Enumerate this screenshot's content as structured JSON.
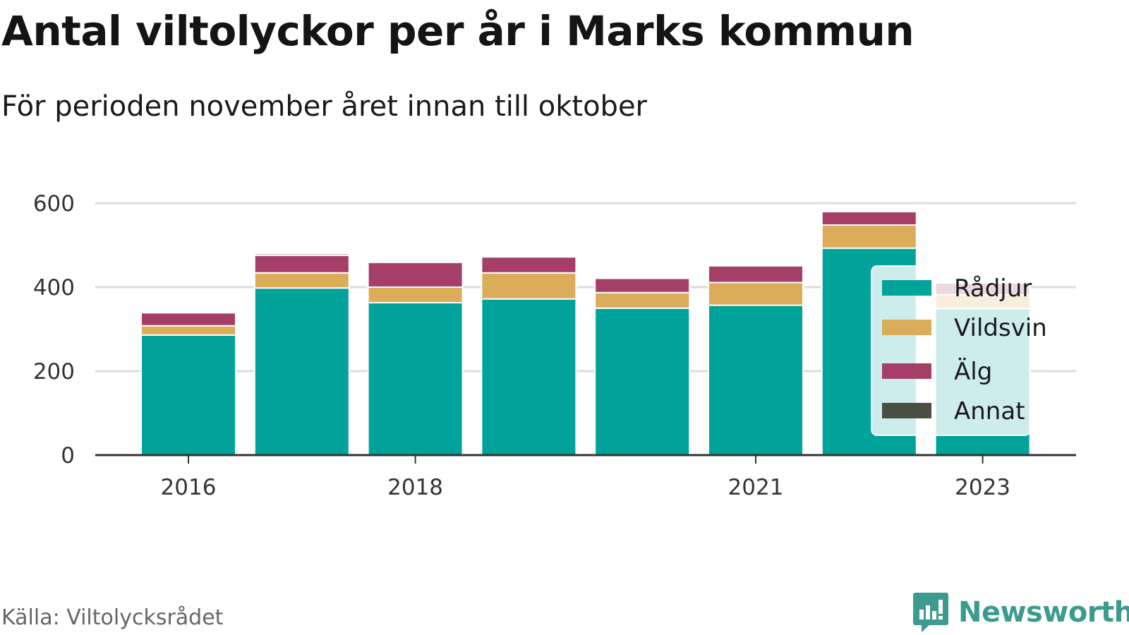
{
  "title": "Antal viltolyckor per år i Marks kommun",
  "subtitle": "För perioden november året innan till oktober",
  "source": "Källa: Viltolycksrådet",
  "brand": "Newsworthy",
  "colors": {
    "radjur": "#00a39a",
    "vildsvin": "#dbac5a",
    "alg": "#a53f68",
    "annat": "#4b4f41",
    "grid": "#dddddd",
    "axis": "#333333",
    "brand": "#3c9b8e"
  },
  "chart_data": {
    "type": "bar",
    "stacked": true,
    "categories": [
      "2016",
      "2017",
      "2018",
      "2019",
      "2020",
      "2021",
      "2022",
      "2023"
    ],
    "x_tick_labels": [
      "2016",
      "2018",
      "2021",
      "2023"
    ],
    "series": [
      {
        "name": "Rådjur",
        "values": [
          286,
          398,
          363,
          372,
          350,
          357,
          493,
          349
        ]
      },
      {
        "name": "Vildsvin",
        "values": [
          22,
          36,
          37,
          62,
          37,
          54,
          55,
          33
        ]
      },
      {
        "name": "Älg",
        "values": [
          31,
          42,
          59,
          38,
          34,
          40,
          32,
          28
        ]
      },
      {
        "name": "Annat",
        "values": [
          0,
          4,
          0,
          0,
          0,
          3,
          3,
          0
        ]
      }
    ],
    "y_ticks": [
      0,
      200,
      400,
      600
    ],
    "ylim": [
      0,
      600
    ],
    "grid": true,
    "legend": "right"
  }
}
